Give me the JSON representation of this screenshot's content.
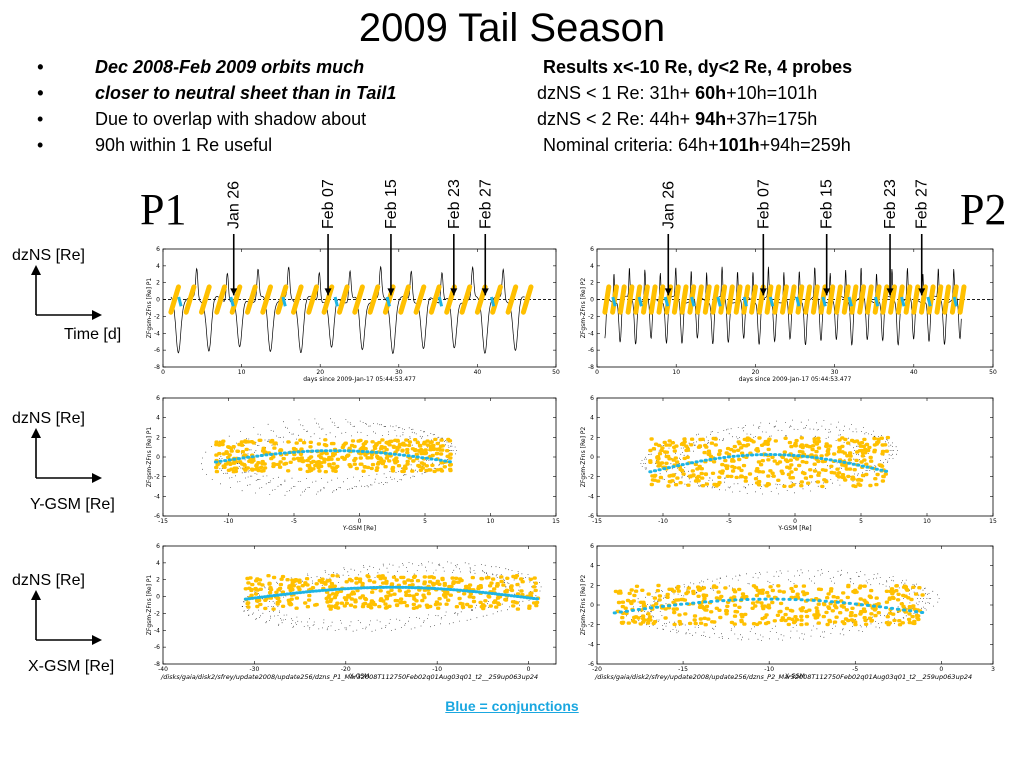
{
  "title": "2009 Tail Season",
  "bullets": [
    {
      "left": "Dec 2008-Feb 2009  orbits  much",
      "left_style": "bi",
      "right_parts": [
        {
          "t": "Results x<-10 Re, dy<2 Re, 4 probes",
          "b": true
        }
      ]
    },
    {
      "left": "closer to neutral sheet than in Tail1",
      "left_style": "bi",
      "right_parts": [
        {
          "t": "dzNS < 1 Re:      31h+ ",
          "b": false
        },
        {
          "t": "60h",
          "b": true
        },
        {
          "t": "+10h=101h",
          "b": false
        }
      ]
    },
    {
      "left": "Due to overlap with shadow  about",
      "left_style": "",
      "right_parts": [
        {
          "t": "dzNS < 2 Re:      44h+ ",
          "b": false
        },
        {
          "t": "94h",
          "b": true
        },
        {
          "t": "+37h=175h",
          "b": false
        }
      ]
    },
    {
      "left": "90h within 1 Re  useful",
      "left_style": "",
      "right_parts": [
        {
          "t": "Nominal criteria: 64h+",
          "b": false
        },
        {
          "t": "101h",
          "b": true
        },
        {
          "t": "+94h=259h",
          "b": false
        }
      ]
    }
  ],
  "bullet_glyph": "•",
  "probe_labels": [
    "P1",
    "P2"
  ],
  "side_labels": [
    {
      "top": "dzNS [Re]",
      "bottom": "Time [d]"
    },
    {
      "top": "dzNS [Re]",
      "bottom": "Y-GSM [Re]"
    },
    {
      "top": "dzNS [Re]",
      "bottom": "X-GSM [Re]"
    }
  ],
  "footer": "Blue = conjunctions",
  "colors": {
    "trace": "#000000",
    "fit": "#ffc000",
    "conjunction": "#1eb4e4"
  },
  "chart_data": [
    {
      "type": "line",
      "probe": "P1",
      "panel": "time",
      "xlabel": "days since 2009-Jan-17 05:44:53.477",
      "ylabel": "ZFgsm-ZFns [Re] P1",
      "xlim": [
        0,
        50
      ],
      "ylim": [
        -8,
        6
      ],
      "xticks": [
        "0",
        "10",
        "20",
        "30",
        "40",
        "50"
      ],
      "yticks": [
        "-8",
        "-6",
        "-4",
        "-2",
        "0",
        "2",
        "4",
        "6"
      ],
      "reference_line": 0,
      "events": [
        {
          "label": "Jan 26",
          "x": 9
        },
        {
          "label": "Feb 07",
          "x": 21
        },
        {
          "label": "Feb 15",
          "x": 29
        },
        {
          "label": "Feb 23",
          "x": 37
        },
        {
          "label": "Feb 27",
          "x": 41
        }
      ],
      "orbit_period_days": 3.9,
      "data_span_days": [
        1,
        46
      ],
      "dip_amplitude": -6
    },
    {
      "type": "line",
      "probe": "P2",
      "panel": "time",
      "xlabel": "days since 2009-Jan-17 05:44:53.477",
      "ylabel": "ZFgsm-ZFns [Re] P2",
      "xlim": [
        0,
        50
      ],
      "ylim": [
        -8,
        6
      ],
      "xticks": [
        "0",
        "10",
        "20",
        "30",
        "40",
        "50"
      ],
      "yticks": [
        "-8",
        "-6",
        "-4",
        "-2",
        "0",
        "2",
        "4",
        "6"
      ],
      "reference_line": 0,
      "events": [
        {
          "label": "Jan 26",
          "x": 9
        },
        {
          "label": "Feb 07",
          "x": 21
        },
        {
          "label": "Feb 15",
          "x": 29
        },
        {
          "label": "Feb 23",
          "x": 37
        },
        {
          "label": "Feb 27",
          "x": 41
        }
      ],
      "orbit_period_days": 1.95,
      "data_span_days": [
        1,
        46
      ],
      "dip_amplitude": -5
    },
    {
      "type": "scatter",
      "probe": "P1",
      "panel": "ygsm",
      "xlabel": "Y-GSM [Re]",
      "ylabel": "ZFgsm-ZFns [Re] P1",
      "xlim": [
        -15,
        15
      ],
      "ylim": [
        -6,
        6
      ],
      "xticks": [
        "-15",
        "-10",
        "-5",
        "0",
        "5",
        "10",
        "15"
      ],
      "yticks": [
        "-6",
        "-4",
        "-2",
        "0",
        "2",
        "4",
        "6"
      ],
      "band_x": [
        -11,
        7
      ],
      "band_y": [
        -1.5,
        1.8
      ]
    },
    {
      "type": "scatter",
      "probe": "P2",
      "panel": "ygsm",
      "xlabel": "Y-GSM [Re]",
      "ylabel": "ZFgsm-ZFns [Re] P2",
      "xlim": [
        -15,
        15
      ],
      "ylim": [
        -6,
        6
      ],
      "xticks": [
        "-15",
        "-10",
        "-5",
        "0",
        "5",
        "10",
        "15"
      ],
      "yticks": [
        "-6",
        "-4",
        "-2",
        "0",
        "2",
        "4",
        "6"
      ],
      "band_x": [
        -11,
        7
      ],
      "band_y": [
        -3,
        2
      ]
    },
    {
      "type": "scatter",
      "probe": "P1",
      "panel": "xgsm",
      "xlabel": "X-GSM",
      "ylabel": "ZFgsm-ZFns [Re] P1",
      "xlim": [
        -40,
        3
      ],
      "ylim": [
        -8,
        6
      ],
      "xticks": [
        "-40",
        "-30",
        "-20",
        "-10",
        "0"
      ],
      "yticks": [
        "-8",
        "-6",
        "-4",
        "-2",
        "0",
        "2",
        "4",
        "6"
      ],
      "band_x": [
        -31,
        1
      ],
      "band_y": [
        -1.5,
        2.5
      ],
      "path": "/disks/gaia/disk2/sfrey/update2008/update256/dzns_P1_Mar32008T112750Feb02q01Aug03q01_t2__259up063up24"
    },
    {
      "type": "scatter",
      "probe": "P2",
      "panel": "xgsm",
      "xlabel": "X-GSM",
      "ylabel": "ZFgsm-ZFns [Re] P2",
      "xlim": [
        -20,
        3
      ],
      "ylim": [
        -6,
        6
      ],
      "xticks": [
        "-20",
        "-15",
        "-10",
        "-5",
        "0",
        "3"
      ],
      "yticks": [
        "-6",
        "-4",
        "-2",
        "0",
        "2",
        "4",
        "6"
      ],
      "band_x": [
        -19,
        -1
      ],
      "band_y": [
        -2,
        2
      ],
      "path": "/disks/gaia/disk2/sfrey/update2008/update256/dzns_P2_Mar32008T112750Feb02q01Aug03q01_t2__259up063up24"
    }
  ]
}
